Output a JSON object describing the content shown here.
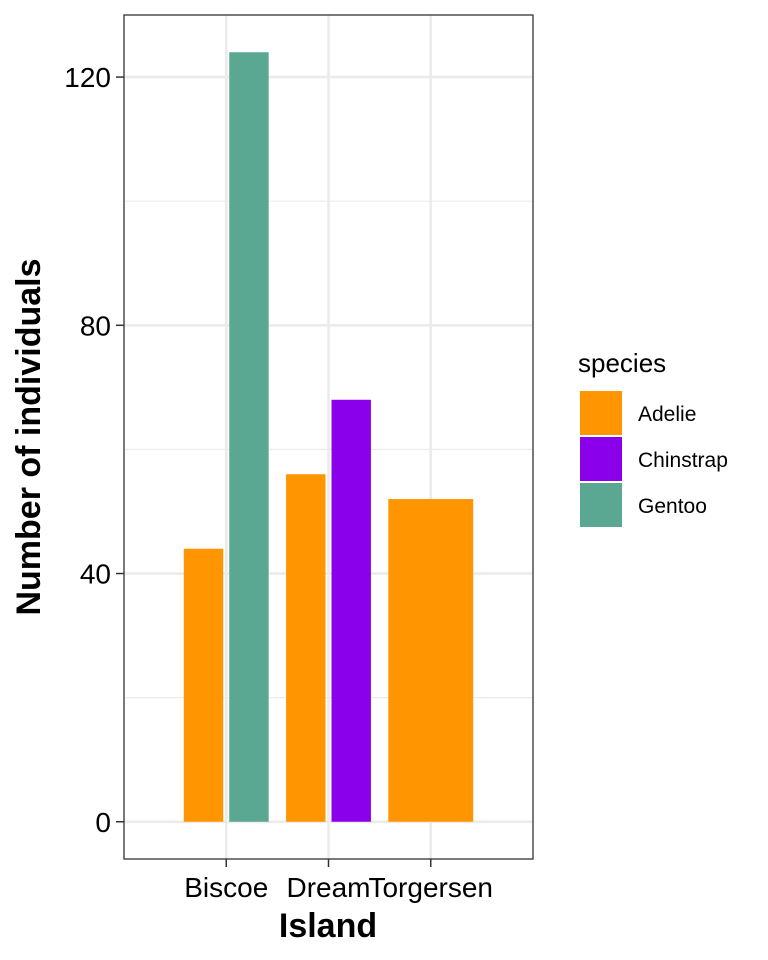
{
  "chart_data": {
    "type": "bar",
    "categories": [
      "Biscoe",
      "Dream",
      "Torgersen"
    ],
    "series": [
      {
        "name": "Adelie",
        "color": "#FF9500",
        "values": [
          44,
          56,
          52
        ]
      },
      {
        "name": "Chinstrap",
        "color": "#8A00EB",
        "values": [
          null,
          68,
          null
        ]
      },
      {
        "name": "Gentoo",
        "color": "#5BA892",
        "values": [
          124,
          null,
          null
        ]
      }
    ],
    "title": "",
    "xlabel": "Island",
    "ylabel": "Number of individuals",
    "ylim": [
      -6,
      130
    ],
    "yticks": [
      0,
      40,
      80,
      120
    ],
    "ytick_labels": [
      "0",
      "40",
      "80",
      "120"
    ],
    "grid": true,
    "legend": {
      "title": "species",
      "placement": "right"
    }
  }
}
